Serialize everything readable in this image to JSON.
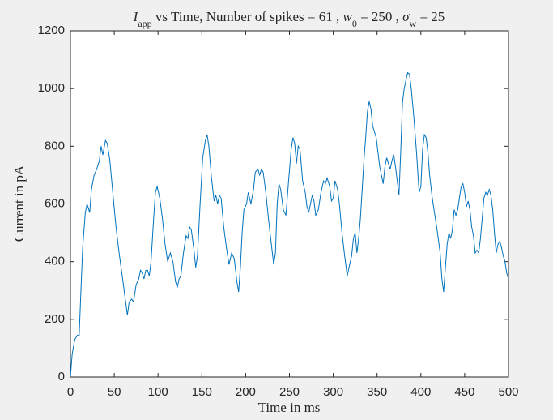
{
  "chart_data": {
    "type": "line",
    "title": [
      {
        "text": "I"
      },
      {
        "text": "app",
        "sub": true
      },
      {
        "text": " vs Time, Number of spikes = 61 , "
      },
      {
        "text": "w"
      },
      {
        "text": "0",
        "sub": true
      },
      {
        "text": " = 250 , "
      },
      {
        "text": "σ"
      },
      {
        "text": "w",
        "sub": true
      },
      {
        "text": " = 25"
      }
    ],
    "xlabel": "Time in ms",
    "ylabel": "Current in pA",
    "xlim": [
      0,
      500
    ],
    "ylim": [
      0,
      1200
    ],
    "xticks": [
      0,
      50,
      100,
      150,
      200,
      250,
      300,
      350,
      400,
      450,
      500
    ],
    "yticks": [
      0,
      200,
      400,
      600,
      800,
      1000,
      1200
    ],
    "series": [
      {
        "color": "#0072bd",
        "x": [
          0,
          2,
          5,
          8,
          10,
          12,
          14,
          17,
          19,
          22,
          24,
          27,
          30,
          33,
          35,
          37,
          40,
          42,
          45,
          48,
          52,
          56,
          60,
          63,
          65,
          67,
          70,
          72,
          75,
          78,
          80,
          82,
          84,
          86,
          88,
          90,
          92,
          95,
          97,
          99,
          102,
          105,
          108,
          111,
          114,
          117,
          120,
          122,
          124,
          126,
          129,
          132,
          134,
          136,
          138,
          141,
          143,
          145,
          148,
          151,
          154,
          156,
          158,
          161,
          164,
          166,
          168,
          170,
          172,
          175,
          178,
          181,
          184,
          187,
          190,
          192,
          194,
          196,
          198,
          201,
          203,
          206,
          209,
          211,
          214,
          216,
          218,
          220,
          223,
          226,
          229,
          232,
          234,
          236,
          238,
          240,
          243,
          246,
          249,
          252,
          254,
          256,
          258,
          260,
          262,
          265,
          268,
          270,
          272,
          274,
          276,
          278,
          280,
          283,
          286,
          289,
          291,
          293,
          296,
          298,
          300,
          302,
          305,
          307,
          310,
          313,
          316,
          318,
          321,
          323,
          325,
          327,
          329,
          331,
          333,
          335,
          337,
          339,
          341,
          343,
          345,
          347,
          349,
          351,
          353,
          355,
          357,
          359,
          361,
          363,
          365,
          367,
          369,
          371,
          373,
          375,
          377,
          379,
          381,
          383,
          385,
          387,
          389,
          392,
          395,
          398,
          400,
          402,
          404,
          406,
          408,
          410,
          413,
          416,
          419,
          422,
          424,
          426,
          428,
          430,
          432,
          434,
          436,
          438,
          440,
          442,
          444,
          446,
          448,
          450,
          452,
          454,
          456,
          458,
          460,
          462,
          464,
          466,
          468,
          470,
          472,
          474,
          476,
          478,
          480,
          482,
          484,
          486,
          488,
          490,
          492,
          494,
          496,
          498,
          500
        ],
        "values": [
          0,
          80,
          130,
          145,
          145,
          300,
          450,
          570,
          600,
          570,
          650,
          700,
          720,
          750,
          800,
          770,
          820,
          810,
          750,
          650,
          520,
          420,
          330,
          260,
          215,
          260,
          270,
          260,
          320,
          340,
          370,
          360,
          340,
          370,
          370,
          350,
          400,
          550,
          640,
          660,
          620,
          550,
          460,
          400,
          430,
          400,
          330,
          310,
          340,
          350,
          430,
          490,
          480,
          520,
          510,
          440,
          380,
          420,
          600,
          760,
          820,
          840,
          800,
          690,
          610,
          630,
          600,
          630,
          620,
          520,
          450,
          390,
          430,
          410,
          330,
          295,
          380,
          500,
          580,
          600,
          640,
          600,
          650,
          710,
          720,
          700,
          720,
          710,
          640,
          550,
          470,
          390,
          430,
          600,
          670,
          650,
          580,
          560,
          680,
          790,
          830,
          810,
          740,
          800,
          790,
          680,
          640,
          590,
          570,
          600,
          630,
          610,
          560,
          580,
          640,
          680,
          670,
          690,
          660,
          610,
          620,
          680,
          650,
          600,
          500,
          420,
          350,
          380,
          420,
          480,
          500,
          430,
          480,
          550,
          650,
          750,
          830,
          920,
          955,
          930,
          870,
          850,
          830,
          780,
          730,
          700,
          670,
          730,
          760,
          740,
          720,
          750,
          770,
          730,
          680,
          630,
          780,
          950,
          1000,
          1030,
          1055,
          1050,
          1000,
          900,
          780,
          640,
          660,
          790,
          840,
          830,
          780,
          700,
          620,
          560,
          500,
          430,
          340,
          295,
          380,
          460,
          500,
          480,
          510,
          580,
          560,
          580,
          620,
          660,
          670,
          640,
          590,
          610,
          580,
          520,
          490,
          430,
          440,
          430,
          480,
          550,
          620,
          640,
          630,
          650,
          630,
          580,
          500,
          430,
          460,
          470,
          450,
          420,
          400,
          360,
          340
        ]
      }
    ]
  }
}
